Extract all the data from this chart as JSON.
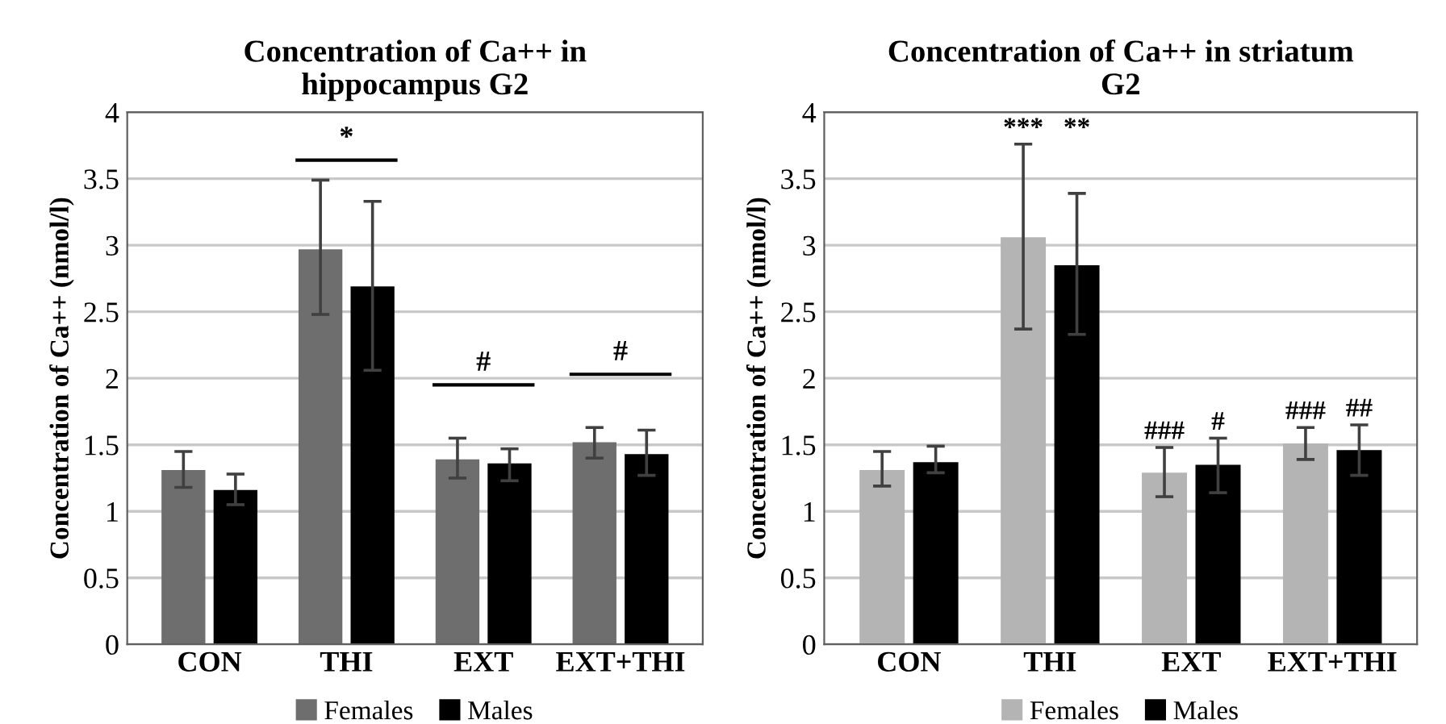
{
  "chart_data": [
    {
      "type": "bar",
      "title": "Concentration of Ca++ in\nhippocampus G2",
      "ylabel": "Concentration of Ca++ (nmol/l)",
      "categories": [
        "CON",
        "THI",
        "EXT",
        "EXT+THI"
      ],
      "series": [
        {
          "name": "Females",
          "color": "#6e6e6e",
          "values": [
            1.31,
            2.97,
            1.39,
            1.52
          ],
          "errors": [
            [
              1.18,
              1.45
            ],
            [
              2.48,
              3.49
            ],
            [
              1.25,
              1.55
            ],
            [
              1.4,
              1.63
            ]
          ]
        },
        {
          "name": "Males",
          "color": "#000000",
          "values": [
            1.16,
            2.69,
            1.36,
            1.43
          ],
          "errors": [
            [
              1.05,
              1.28
            ],
            [
              2.06,
              3.33
            ],
            [
              1.23,
              1.47
            ],
            [
              1.27,
              1.61
            ]
          ]
        }
      ],
      "annotations": [
        "*",
        "#",
        "#"
      ],
      "ylim": [
        0,
        4
      ],
      "yticks": [
        0,
        0.5,
        1,
        1.5,
        2,
        2.5,
        3,
        3.5,
        4
      ],
      "grid": "y",
      "legend": "bottom"
    },
    {
      "type": "bar",
      "title": "Concentration of Ca++ in striatum\nG2",
      "ylabel": "Concentration of Ca++ (nmol/l)",
      "categories": [
        "CON",
        "THI",
        "EXT",
        "EXT+THI"
      ],
      "series": [
        {
          "name": "Females",
          "color": "#b4b4b4",
          "values": [
            1.31,
            3.06,
            1.29,
            1.51
          ],
          "errors": [
            [
              1.19,
              1.45
            ],
            [
              2.37,
              3.76
            ],
            [
              1.11,
              1.48
            ],
            [
              1.39,
              1.63
            ]
          ]
        },
        {
          "name": "Males",
          "color": "#000000",
          "values": [
            1.37,
            2.85,
            1.35,
            1.46
          ],
          "errors": [
            [
              1.29,
              1.49
            ],
            [
              2.33,
              3.39
            ],
            [
              1.14,
              1.55
            ],
            [
              1.27,
              1.65
            ]
          ]
        }
      ],
      "annotations": [
        "***",
        "**",
        "###",
        "#",
        "###",
        "##"
      ],
      "ylim": [
        0,
        4
      ],
      "yticks": [
        0,
        0.5,
        1,
        1.5,
        2,
        2.5,
        3,
        3.5,
        4
      ],
      "grid": "y",
      "legend": "bottom"
    }
  ]
}
